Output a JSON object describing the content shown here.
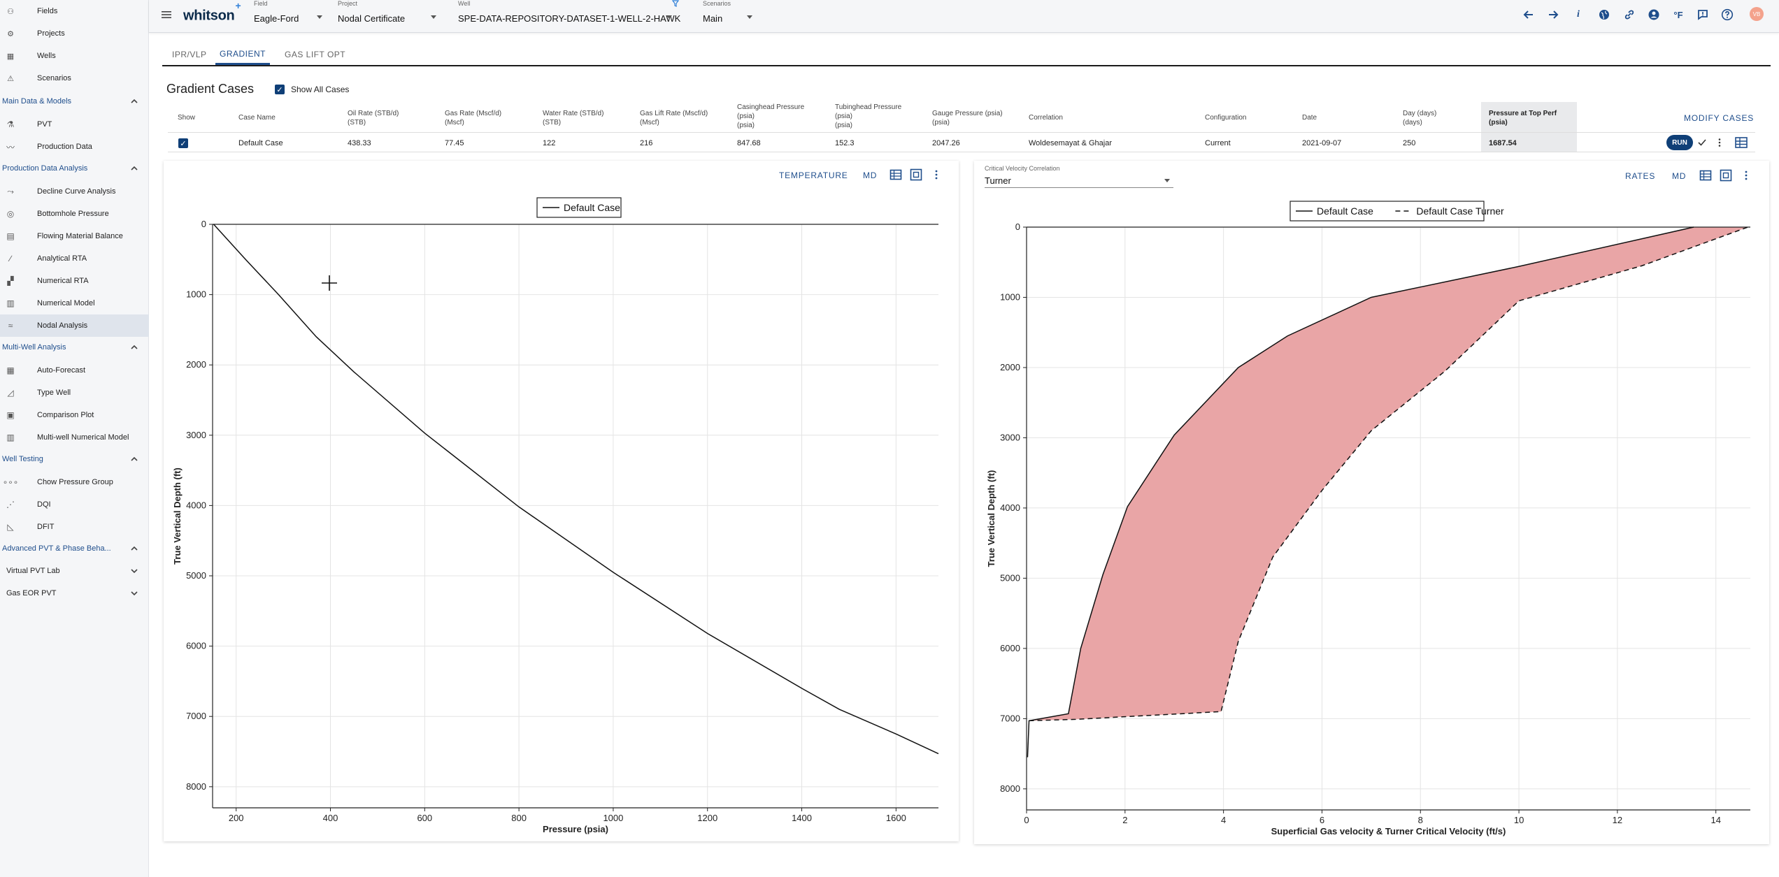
{
  "sidebar": {
    "top_items": [
      {
        "label": "Fields",
        "icon": "fields-icon"
      },
      {
        "label": "Projects",
        "icon": "projects-icon"
      },
      {
        "label": "Wells",
        "icon": "wells-icon"
      },
      {
        "label": "Scenarios",
        "icon": "scenarios-icon"
      }
    ],
    "sections": [
      {
        "title": "Main Data & Models",
        "items": [
          "PVT",
          "Production Data"
        ]
      },
      {
        "title": "Production Data Analysis",
        "items": [
          "Decline Curve Analysis",
          "Bottomhole Pressure",
          "Flowing Material Balance",
          "Analytical RTA",
          "Numerical RTA",
          "Numerical Model",
          "Nodal Analysis"
        ]
      },
      {
        "title": "Multi-Well Analysis",
        "items": [
          "Auto-Forecast",
          "Type Well",
          "Comparison Plot",
          "Multi-well Numerical Model"
        ]
      },
      {
        "title": "Well Testing",
        "items": [
          "Chow Pressure Group",
          "DQI",
          "DFIT"
        ]
      },
      {
        "title": "Advanced PVT & Phase Beha..."
      }
    ],
    "subsections": [
      "Virtual PVT Lab",
      "Gas EOR PVT"
    ],
    "active_item": "Nodal Analysis"
  },
  "topbar": {
    "logo": "whitson",
    "logo_plus": "+",
    "field": {
      "caption": "Field",
      "value": "Eagle-Ford"
    },
    "project": {
      "caption": "Project",
      "value": "Nodal Certificate"
    },
    "well": {
      "caption": "Well",
      "value": "SPE-DATA-REPOSITORY-DATASET-1-WELL-2-HAWK"
    },
    "scenario": {
      "caption": "Scenarios",
      "value": "Main"
    },
    "units_label": "°F",
    "avatar_initials": "VB"
  },
  "tabs": [
    "IPR/VLP",
    "GRADIENT",
    "GAS LIFT OPT"
  ],
  "active_tab": "GRADIENT",
  "gradient_cases": {
    "title": "Gradient Cases",
    "show_all_label": "Show All Cases",
    "modify_label": "MODIFY CASES",
    "run_label": "RUN",
    "headers": [
      [
        "Show"
      ],
      [
        "Case Name"
      ],
      [
        "Oil Rate (STB/d)",
        "(STB)"
      ],
      [
        "Gas Rate (Mscf/d)",
        "(Mscf)"
      ],
      [
        "Water Rate (STB/d)",
        "(STB)"
      ],
      [
        "Gas Lift Rate (Mscf/d)",
        "(Mscf)"
      ],
      [
        "Casinghead Pressure",
        "(psia)",
        "(psia)"
      ],
      [
        "Tubinghead Pressure",
        "(psia)",
        "(psia)"
      ],
      [
        "Gauge Pressure (psia)",
        "(psia)"
      ],
      [
        "Correlation"
      ],
      [
        "Configuration"
      ],
      [
        "Date"
      ],
      [
        "Day (days)",
        "(days)"
      ],
      [
        "Pressure at Top Perf",
        "(psia)"
      ]
    ],
    "row": {
      "case_name": "Default Case",
      "oil_rate": "438.33",
      "gas_rate": "77.45",
      "water_rate": "122",
      "gas_lift_rate": "216",
      "casinghead_pressure": "847.68",
      "tubinghead_pressure": "152.3",
      "gauge_pressure": "2047.26",
      "correlation": "Woldesemayat & Ghajar",
      "configuration": "Current",
      "date": "2021-09-07",
      "day": "250",
      "pressure_top_perf": "1687.54"
    }
  },
  "left_panel": {
    "temperature_label": "TEMPERATURE",
    "md_label": "MD"
  },
  "right_panel": {
    "critical_velocity_caption": "Critical Velocity Correlation",
    "critical_velocity_value": "Turner",
    "rates_label": "RATES",
    "md_label": "MD"
  },
  "chart_data": [
    {
      "type": "line",
      "xlabel": "Pressure (psia)",
      "ylabel": "True Vertical Depth (ft)",
      "xlim": [
        150,
        1690
      ],
      "ylim": [
        8300,
        0
      ],
      "xticks": [
        200,
        400,
        600,
        800,
        1000,
        1200,
        1400,
        1600
      ],
      "yticks": [
        0,
        1000,
        2000,
        3000,
        4000,
        5000,
        6000,
        7000,
        8000
      ],
      "grid": true,
      "legend_position": "top",
      "series": [
        {
          "name": "Default Case",
          "style": "solid",
          "x": [
            152.3,
            220,
            290,
            370,
            450,
            600,
            800,
            1000,
            1200,
            1400,
            1480,
            1600,
            1690
          ],
          "y": [
            0,
            500,
            1000,
            1600,
            2100,
            2970,
            4020,
            4950,
            5820,
            6600,
            6900,
            7250,
            7530
          ]
        }
      ]
    },
    {
      "type": "area",
      "xlabel": "Superficial Gas velocity & Turner Critical Velocity (ft/s)",
      "ylabel": "True Vertical Depth (ft)",
      "xlim": [
        0,
        14.7
      ],
      "ylim": [
        8300,
        0
      ],
      "xticks": [
        0,
        2,
        4,
        6,
        8,
        10,
        12,
        14
      ],
      "yticks": [
        0,
        1000,
        2000,
        3000,
        4000,
        5000,
        6000,
        7000,
        8000
      ],
      "grid": true,
      "legend_position": "top",
      "fill_color": "#e9a5a6",
      "series": [
        {
          "name": "Default Case",
          "style": "solid",
          "x": [
            0.02,
            0.05,
            0.85,
            1.1,
            1.55,
            2.05,
            3.0,
            4.3,
            5.3,
            7.0,
            10.0,
            13.55
          ],
          "y": [
            7550,
            7030,
            6930,
            6000,
            4950,
            3980,
            2960,
            2000,
            1550,
            1000,
            560,
            0
          ]
        },
        {
          "name": "Default Case Turner",
          "style": "dashed",
          "x": [
            0.05,
            1.0,
            3.95,
            4.3,
            5.0,
            6.0,
            7.0,
            8.5,
            10.0,
            12.5,
            14.65
          ],
          "y": [
            7030,
            7010,
            6900,
            5900,
            4700,
            3750,
            2900,
            2050,
            1050,
            550,
            0
          ]
        }
      ]
    }
  ]
}
